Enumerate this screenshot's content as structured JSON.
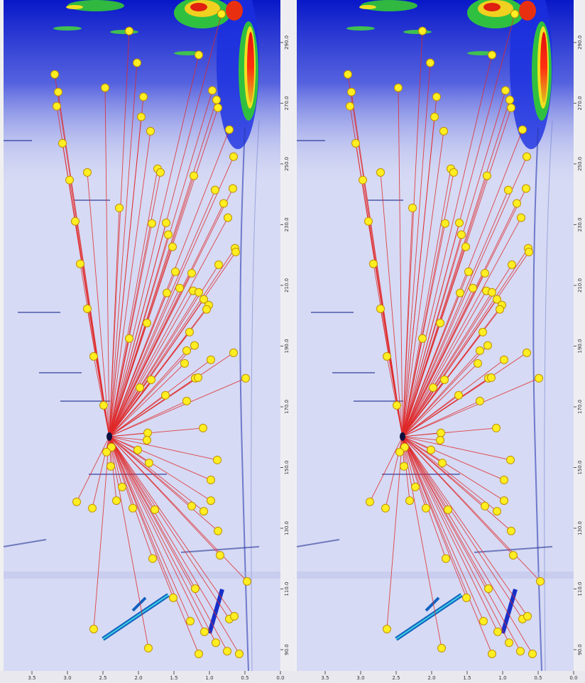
{
  "chart_data": [
    {
      "type": "scatter",
      "xlim": [
        3.9,
        0
      ],
      "ylim": [
        83,
        304
      ],
      "xticks": [
        3.5,
        {
          "value": 3,
          "label": "3.0"
        },
        2.5,
        {
          "value": 2,
          "label": "2.0"
        },
        1.5,
        {
          "value": 1,
          "label": "1.0"
        },
        0.5,
        {
          "value": 0,
          "label": "0.0"
        }
      ],
      "yticks": [
        {
          "value": 90,
          "label": "90.0"
        },
        {
          "value": 110,
          "label": "110.0"
        },
        {
          "value": 130,
          "label": "130.0"
        },
        {
          "value": 150,
          "label": "150.0"
        },
        {
          "value": 170,
          "label": "170.0"
        },
        {
          "value": 190,
          "label": "190.0"
        },
        {
          "value": 210,
          "label": "210.0"
        },
        {
          "value": 230,
          "label": "230.0"
        },
        {
          "value": 250,
          "label": "250.0"
        },
        {
          "value": 270,
          "label": "270.0"
        },
        {
          "value": 290,
          "label": "290.0"
        }
      ],
      "hub": {
        "x": 2.41,
        "y": 160.2
      },
      "color": "#ffee22",
      "line_color": "#e02828",
      "x": [
        0.83,
        2.13,
        1.15,
        2.02,
        3.18,
        2.47,
        3.13,
        0.96,
        1.93,
        0.9,
        3.15,
        0.88,
        1.96,
        1.83,
        0.72,
        3.07,
        0.66,
        2.72,
        1.73,
        1.69,
        1.22,
        2.97,
        0.92,
        0.67,
        0.8,
        2.27,
        2.89,
        1.81,
        1.61,
        0.74,
        1.58,
        1.52,
        0.64,
        0.63,
        2.82,
        0.87,
        1.48,
        1.25,
        1.42,
        1.6,
        1.23,
        1.15,
        1.08,
        1.01,
        1.04,
        2.72,
        1.88,
        1.28,
        2.13,
        1.21,
        1.32,
        0.66,
        2.63,
        0.98,
        1.35,
        1.2,
        1.16,
        1.82,
        1.98,
        1.62,
        0.49,
        1.32,
        2.49,
        1.87,
        1.88,
        1.09,
        2.38,
        2.45,
        2.01,
        0.89,
        2.39,
        1.85,
        0.98,
        2.23,
        2.87,
        2.65,
        2.31,
        2.08,
        1.77,
        1.25,
        0.98,
        1.08,
        0.88,
        1.8,
        0.85,
        0.47,
        1.2,
        1.51,
        2.63,
        1.27,
        0.72,
        0.65,
        1.07,
        1.86,
        1.15,
        0.91,
        0.75,
        0.58
      ],
      "y": [
        299.4,
        293.8,
        285.9,
        283.3,
        279.5,
        275.1,
        273.7,
        274.2,
        272.1,
        271.1,
        269.0,
        268.5,
        265.5,
        260.8,
        261.3,
        256.8,
        252.4,
        247.2,
        248.4,
        247.2,
        246.1,
        244.7,
        241.4,
        241.9,
        237.0,
        235.5,
        231.1,
        230.4,
        230.6,
        232.3,
        226.7,
        222.7,
        222.2,
        221.0,
        217.1,
        216.8,
        214.5,
        214.0,
        209.1,
        207.5,
        208.2,
        207.7,
        205.4,
        203.5,
        202.1,
        202.3,
        197.6,
        194.6,
        192.5,
        190.2,
        188.5,
        187.8,
        186.6,
        185.5,
        184.3,
        179.4,
        179.6,
        178.9,
        176.3,
        173.8,
        179.4,
        171.9,
        170.5,
        161.4,
        159.0,
        163.0,
        156.7,
        155.1,
        155.8,
        152.5,
        150.4,
        151.5,
        145.9,
        143.6,
        138.7,
        136.6,
        139.1,
        136.6,
        136.1,
        137.3,
        139.1,
        135.6,
        129.1,
        120.0,
        121.1,
        112.5,
        110.1,
        107.1,
        96.8,
        99.4,
        100.1,
        101.0,
        95.9,
        90.5,
        88.6,
        92.3,
        89.5,
        88.6
      ]
    },
    {
      "type": "scatter",
      "xlim": [
        3.9,
        0
      ],
      "ylim": [
        83,
        304
      ],
      "xticks": [
        3.5,
        {
          "value": 3,
          "label": "3.0"
        },
        2.5,
        {
          "value": 2,
          "label": "2.0"
        },
        1.5,
        {
          "value": 1,
          "label": "1.0"
        },
        0.5,
        {
          "value": 0,
          "label": "0.0"
        }
      ],
      "yticks": [
        {
          "value": 90,
          "label": "90.0"
        },
        {
          "value": 110,
          "label": "110.0"
        },
        {
          "value": 130,
          "label": "130.0"
        },
        {
          "value": 150,
          "label": "150.0"
        },
        {
          "value": 170,
          "label": "170.0"
        },
        {
          "value": 190,
          "label": "190.0"
        },
        {
          "value": 210,
          "label": "210.0"
        },
        {
          "value": 230,
          "label": "230.0"
        },
        {
          "value": 250,
          "label": "250.0"
        },
        {
          "value": 270,
          "label": "270.0"
        },
        {
          "value": 290,
          "label": "290.0"
        }
      ],
      "hub": {
        "x": 2.41,
        "y": 160.2
      },
      "color": "#ffee22",
      "line_color": "#e02828",
      "x": [
        0.83,
        2.13,
        1.15,
        2.02,
        3.18,
        2.47,
        3.13,
        0.96,
        1.93,
        0.9,
        3.15,
        0.88,
        1.96,
        1.83,
        0.72,
        3.07,
        0.66,
        2.72,
        1.73,
        1.69,
        1.22,
        2.97,
        0.92,
        0.67,
        0.8,
        2.27,
        2.89,
        1.81,
        1.61,
        0.74,
        1.58,
        1.52,
        0.64,
        0.63,
        2.82,
        0.87,
        1.48,
        1.25,
        1.42,
        1.6,
        1.23,
        1.15,
        1.08,
        1.01,
        1.04,
        2.72,
        1.88,
        1.28,
        2.13,
        1.21,
        1.32,
        0.66,
        2.63,
        0.98,
        1.35,
        1.2,
        1.16,
        1.82,
        1.98,
        1.62,
        0.49,
        1.32,
        2.49,
        1.87,
        1.88,
        1.09,
        2.38,
        2.45,
        2.01,
        0.89,
        2.39,
        1.85,
        0.98,
        2.23,
        2.87,
        2.65,
        2.31,
        2.08,
        1.77,
        1.25,
        0.98,
        1.08,
        0.88,
        1.8,
        0.85,
        0.47,
        1.2,
        1.51,
        2.63,
        1.27,
        0.72,
        0.65,
        1.07,
        1.86,
        1.15,
        0.91,
        0.75,
        0.58
      ],
      "y": [
        299.4,
        293.8,
        285.9,
        283.3,
        279.5,
        275.1,
        273.7,
        274.2,
        272.1,
        271.1,
        269.0,
        268.5,
        265.5,
        260.8,
        261.3,
        256.8,
        252.4,
        247.2,
        248.4,
        247.2,
        246.1,
        244.7,
        241.4,
        241.9,
        237.0,
        235.5,
        231.1,
        230.4,
        230.6,
        232.3,
        226.7,
        222.7,
        222.2,
        221.0,
        217.1,
        216.8,
        214.5,
        214.0,
        209.1,
        207.5,
        208.2,
        207.7,
        205.4,
        203.5,
        202.1,
        202.3,
        197.6,
        194.6,
        192.5,
        190.2,
        188.5,
        187.8,
        186.6,
        185.5,
        184.3,
        179.4,
        179.6,
        178.9,
        176.3,
        173.8,
        179.4,
        171.9,
        170.5,
        161.4,
        159.0,
        163.0,
        156.7,
        155.1,
        155.8,
        152.5,
        150.4,
        151.5,
        145.9,
        143.6,
        138.7,
        136.6,
        139.1,
        136.6,
        136.1,
        137.3,
        139.1,
        135.6,
        129.1,
        120.0,
        121.1,
        112.5,
        110.1,
        107.1,
        96.8,
        99.4,
        100.1,
        101.0,
        95.9,
        90.5,
        88.6,
        92.3,
        89.5,
        88.6
      ]
    }
  ]
}
